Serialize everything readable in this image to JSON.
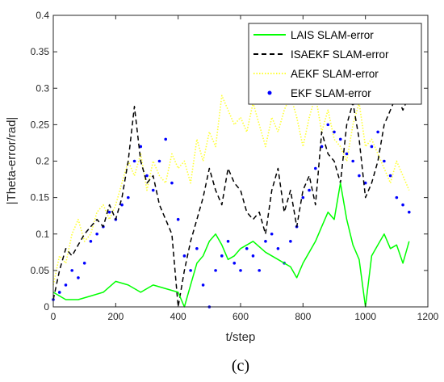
{
  "chart_data": {
    "type": "line",
    "title": "",
    "xlabel": "t/step",
    "ylabel": "|Theta-error/rad|",
    "panel_label": "(c)",
    "xlim": [
      0,
      1200
    ],
    "ylim": [
      0,
      0.4
    ],
    "x_ticks": [
      0,
      200,
      400,
      600,
      800,
      1000,
      1200
    ],
    "y_ticks": [
      0,
      0.05,
      0.1,
      0.15,
      0.2,
      0.25,
      0.3,
      0.35,
      0.4
    ],
    "x_tick_labels": [
      "0",
      "200",
      "400",
      "600",
      "800",
      "1000",
      "1200"
    ],
    "y_tick_labels": [
      "0",
      "0.05",
      "0.1",
      "0.15",
      "0.2",
      "0.25",
      "0.3",
      "0.35",
      "0.4"
    ],
    "grid": false,
    "legend_position": "top-right",
    "series": [
      {
        "name": "LAIS SLAM-error",
        "color": "#00ff00",
        "style": "solid",
        "x": [
          0,
          40,
          80,
          120,
          160,
          200,
          240,
          280,
          320,
          360,
          400,
          420,
          440,
          460,
          480,
          500,
          520,
          540,
          560,
          580,
          600,
          640,
          680,
          720,
          760,
          780,
          800,
          840,
          860,
          880,
          900,
          920,
          940,
          960,
          980,
          1000,
          1020,
          1040,
          1060,
          1080,
          1100,
          1120,
          1140
        ],
        "y": [
          0.02,
          0.01,
          0.01,
          0.015,
          0.02,
          0.035,
          0.03,
          0.02,
          0.03,
          0.025,
          0.02,
          0.0,
          0.03,
          0.06,
          0.07,
          0.09,
          0.1,
          0.085,
          0.065,
          0.07,
          0.08,
          0.09,
          0.075,
          0.065,
          0.055,
          0.04,
          0.06,
          0.09,
          0.11,
          0.13,
          0.12,
          0.17,
          0.12,
          0.085,
          0.065,
          0.0,
          0.07,
          0.085,
          0.1,
          0.08,
          0.085,
          0.06,
          0.09
        ]
      },
      {
        "name": "ISAEKF SLAM-error",
        "color": "#000000",
        "style": "dashed",
        "x": [
          0,
          20,
          40,
          60,
          80,
          100,
          120,
          140,
          160,
          180,
          200,
          220,
          240,
          260,
          280,
          300,
          320,
          340,
          360,
          380,
          400,
          420,
          440,
          460,
          480,
          500,
          520,
          540,
          560,
          580,
          600,
          620,
          640,
          660,
          680,
          700,
          720,
          740,
          760,
          780,
          800,
          820,
          840,
          860,
          880,
          900,
          920,
          940,
          960,
          980,
          1000,
          1020,
          1040,
          1060,
          1080,
          1100,
          1120,
          1140
        ],
        "y": [
          0.01,
          0.05,
          0.08,
          0.07,
          0.085,
          0.1,
          0.11,
          0.12,
          0.11,
          0.14,
          0.12,
          0.15,
          0.2,
          0.275,
          0.2,
          0.17,
          0.18,
          0.14,
          0.12,
          0.1,
          0.0,
          0.05,
          0.09,
          0.12,
          0.15,
          0.19,
          0.16,
          0.14,
          0.19,
          0.17,
          0.16,
          0.13,
          0.12,
          0.13,
          0.1,
          0.16,
          0.19,
          0.13,
          0.16,
          0.11,
          0.16,
          0.18,
          0.14,
          0.24,
          0.21,
          0.2,
          0.17,
          0.25,
          0.28,
          0.23,
          0.15,
          0.17,
          0.2,
          0.25,
          0.27,
          0.29,
          0.27,
          0.29
        ]
      },
      {
        "name": "AEKF SLAM-error",
        "color": "#ffff33",
        "style": "dotted",
        "x": [
          0,
          20,
          40,
          60,
          80,
          100,
          120,
          140,
          160,
          180,
          200,
          220,
          240,
          260,
          280,
          300,
          320,
          340,
          360,
          380,
          400,
          420,
          440,
          460,
          480,
          500,
          520,
          540,
          560,
          580,
          600,
          620,
          640,
          660,
          680,
          700,
          720,
          740,
          760,
          780,
          800,
          820,
          840,
          860,
          880,
          900,
          920,
          940,
          960,
          980,
          1000,
          1020,
          1040,
          1060,
          1080,
          1100,
          1120,
          1140
        ],
        "y": [
          0.03,
          0.07,
          0.06,
          0.1,
          0.12,
          0.09,
          0.1,
          0.13,
          0.14,
          0.12,
          0.14,
          0.17,
          0.2,
          0.18,
          0.21,
          0.16,
          0.2,
          0.18,
          0.17,
          0.21,
          0.19,
          0.2,
          0.17,
          0.23,
          0.2,
          0.24,
          0.22,
          0.29,
          0.27,
          0.25,
          0.26,
          0.24,
          0.28,
          0.25,
          0.22,
          0.26,
          0.24,
          0.27,
          0.29,
          0.26,
          0.22,
          0.26,
          0.29,
          0.24,
          0.27,
          0.23,
          0.22,
          0.2,
          0.25,
          0.28,
          0.22,
          0.23,
          0.21,
          0.19,
          0.17,
          0.2,
          0.18,
          0.16
        ]
      },
      {
        "name": "EKF SLAM-error",
        "color": "#0000ff",
        "style": "markers",
        "x": [
          0,
          20,
          40,
          60,
          80,
          100,
          120,
          140,
          160,
          180,
          200,
          220,
          240,
          260,
          280,
          300,
          320,
          340,
          360,
          380,
          400,
          420,
          440,
          460,
          480,
          500,
          520,
          540,
          560,
          580,
          600,
          620,
          640,
          660,
          680,
          700,
          720,
          740,
          760,
          780,
          800,
          820,
          840,
          860,
          880,
          900,
          920,
          940,
          960,
          980,
          1000,
          1020,
          1040,
          1060,
          1080,
          1100,
          1120,
          1140
        ],
        "y": [
          0.01,
          0.02,
          0.03,
          0.05,
          0.04,
          0.06,
          0.09,
          0.1,
          0.11,
          0.13,
          0.12,
          0.14,
          0.15,
          0.2,
          0.22,
          0.18,
          0.16,
          0.2,
          0.23,
          0.17,
          0.12,
          0.07,
          0.05,
          0.08,
          0.03,
          0.0,
          0.05,
          0.07,
          0.09,
          0.06,
          0.05,
          0.08,
          0.07,
          0.05,
          0.09,
          0.1,
          0.08,
          0.06,
          0.09,
          0.11,
          0.15,
          0.16,
          0.19,
          0.22,
          0.25,
          0.24,
          0.23,
          0.21,
          0.2,
          0.18,
          0.17,
          0.22,
          0.24,
          0.2,
          0.18,
          0.15,
          0.14,
          0.13
        ]
      }
    ]
  }
}
